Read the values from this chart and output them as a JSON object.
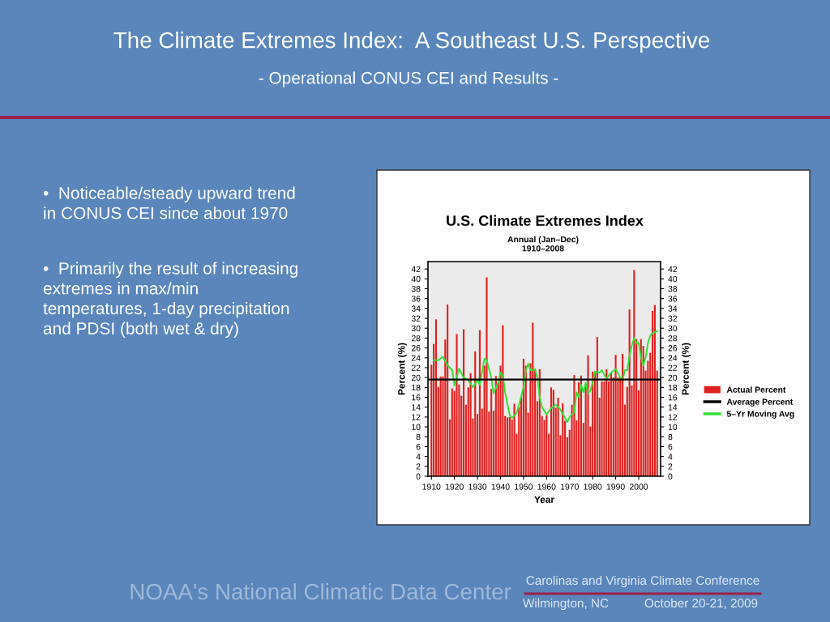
{
  "chart_data": {
    "type": "bar",
    "title": "U.S. Climate Extremes Index",
    "subtitle": "Annual (Jan–Dec)\n1910–2008",
    "xlabel": "Year",
    "ylabel": "Percent (%)",
    "y2label": "Percent (%)",
    "annotations": [
      "The Climate Extremes Index:  A Southeast U.S. Perspective",
      "- Operational CONUS CEI and Results -",
      "•  Noticeable/steady upward trend\nin CONUS CEI since about 1970",
      "•  Primarily the result of increasing\nextremes in max/min\ntemperatures, 1-day precipitation\nand PDSI (both wet & dry)",
      "NOAA's National Climatic Data Center",
      "Carolinas and Virginia Climate Conference",
      "Wilmington, NC",
      "October 20-21, 2009"
    ],
    "x": [
      1910,
      1911,
      1912,
      1913,
      1914,
      1915,
      1916,
      1917,
      1918,
      1919,
      1920,
      1921,
      1922,
      1923,
      1924,
      1925,
      1926,
      1927,
      1928,
      1929,
      1930,
      1931,
      1932,
      1933,
      1934,
      1935,
      1936,
      1937,
      1938,
      1939,
      1940,
      1941,
      1942,
      1943,
      1944,
      1945,
      1946,
      1947,
      1948,
      1949,
      1950,
      1951,
      1952,
      1953,
      1954,
      1955,
      1956,
      1957,
      1958,
      1959,
      1960,
      1961,
      1962,
      1963,
      1964,
      1965,
      1966,
      1967,
      1968,
      1969,
      1970,
      1971,
      1972,
      1973,
      1974,
      1975,
      1976,
      1977,
      1978,
      1979,
      1980,
      1981,
      1982,
      1983,
      1984,
      1985,
      1986,
      1987,
      1988,
      1989,
      1990,
      1991,
      1992,
      1993,
      1994,
      1995,
      1996,
      1997,
      1998,
      1999,
      2000,
      2001,
      2002,
      2003,
      2004,
      2005,
      2006,
      2007,
      2008
    ],
    "series": [
      {
        "name": "Actual Percent",
        "color": "#e02020",
        "values": [
          22.6,
          26.8,
          31.8,
          18.1,
          20.2,
          20.2,
          27.7,
          34.8,
          11.5,
          17.8,
          17.3,
          28.8,
          18.6,
          16.3,
          29.8,
          14.5,
          18.0,
          20.9,
          11.7,
          25.3,
          12.6,
          29.6,
          13.7,
          22.4,
          40.3,
          13.1,
          17.7,
          13.3,
          20.3,
          19.0,
          22.4,
          30.6,
          12.2,
          11.9,
          12.0,
          11.5,
          14.7,
          8.6,
          14.0,
          16.0,
          23.8,
          22.4,
          12.9,
          22.9,
          31.1,
          21.8,
          15.2,
          21.7,
          12.2,
          11.4,
          12.4,
          8.6,
          18.0,
          17.5,
          13.9,
          15.9,
          8.3,
          14.8,
          11.2,
          7.9,
          9.4,
          14.5,
          20.5,
          11.3,
          19.0,
          20.4,
          10.8,
          18.7,
          24.5,
          10.1,
          21.2,
          21.0,
          28.2,
          15.9,
          19.2,
          19.2,
          21.7,
          19.2,
          20.9,
          20.0,
          24.6,
          20.0,
          20.0,
          24.8,
          14.5,
          18.1,
          33.8,
          18.4,
          41.8,
          27.8,
          17.4,
          27.8,
          26.4,
          21.4,
          23.4,
          25.0,
          33.5,
          34.7,
          21.4
        ]
      },
      {
        "name": "5–Yr Moving Avg",
        "type": "line",
        "color": "#33e033",
        "x": [
          1911,
          1913,
          1915,
          1917,
          1919,
          1920,
          1922,
          1924,
          1926,
          1928,
          1930,
          1931,
          1933,
          1934,
          1936,
          1937,
          1939,
          1940,
          1941,
          1942,
          1944,
          1945,
          1947,
          1948,
          1950,
          1951,
          1952,
          1953,
          1954,
          1955,
          1956,
          1957,
          1958,
          1960,
          1962,
          1964,
          1966,
          1968,
          1969,
          1970,
          1972,
          1973,
          1974,
          1975,
          1976,
          1977,
          1978,
          1979,
          1980,
          1981,
          1983,
          1984,
          1986,
          1988,
          1990,
          1992,
          1993,
          1994,
          1995,
          1996,
          1997,
          1998,
          1999,
          2000,
          2001,
          2002,
          2003,
          2004,
          2005,
          2006,
          2008
        ],
        "values": [
          23.5,
          23.5,
          24.2,
          22.5,
          21.5,
          18.4,
          21.8,
          20.0,
          19.5,
          18.0,
          19.5,
          18.5,
          23.8,
          23.5,
          20.0,
          16.8,
          19.0,
          21.0,
          20.5,
          17.0,
          12.3,
          11.8,
          12.8,
          14.5,
          18.0,
          21.5,
          22.8,
          21.5,
          21.5,
          21.7,
          20.0,
          16.0,
          14.0,
          12.5,
          13.8,
          14.5,
          13.5,
          11.8,
          11.0,
          12.0,
          13.0,
          17.0,
          16.0,
          18.5,
          17.0,
          19.0,
          16.8,
          17.3,
          19.0,
          21.2,
          21.0,
          21.5,
          19.8,
          21.0,
          21.7,
          20.0,
          19.5,
          21.5,
          21.5,
          24.5,
          26.5,
          28.0,
          27.0,
          27.0,
          24.0,
          22.5,
          24.0,
          27.0,
          28.5,
          29.0,
          29.4
        ]
      }
    ],
    "ref_lines": [
      {
        "axis": "y",
        "value": 19.6,
        "label": "Average Percent",
        "color": "#000000",
        "line_style": "solid"
      }
    ],
    "xlim": [
      1908.5,
      2009.5
    ],
    "xticks": [
      1910,
      1920,
      1930,
      1940,
      1950,
      1960,
      1970,
      1980,
      1990,
      2000
    ],
    "ylim": [
      0,
      43.5
    ],
    "yticks": [
      0,
      2,
      4,
      6,
      8,
      10,
      12,
      14,
      16,
      18,
      20,
      22,
      24,
      26,
      28,
      30,
      32,
      34,
      36,
      38,
      40,
      42
    ],
    "y2lim": [
      0,
      43.5
    ],
    "y2ticks": [
      0,
      2,
      4,
      6,
      8,
      10,
      12,
      14,
      16,
      18,
      20,
      22,
      24,
      26,
      28,
      30,
      32,
      34,
      36,
      38,
      40,
      42
    ],
    "grid": false,
    "legend": "right"
  }
}
